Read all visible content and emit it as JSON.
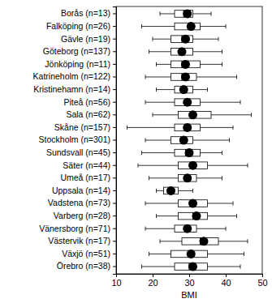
{
  "chart_data": {
    "type": "box",
    "orientation": "horizontal",
    "color": "#000000",
    "x_label": "BMI",
    "categories": [
      "Borås (n=13)",
      "Falköping (n=26)",
      "Gävle (n=19)",
      "Göteborg (n=137)",
      "Jönköping (n=11)",
      "Katrineholm (n=122)",
      "Kristinehamn (n=14)",
      "Piteå (n=56)",
      "Sala (n=62)",
      "Skåne (n=157)",
      "Stockholm (n=301)",
      "Sundsvall (n=45)",
      "Säter (n=44)",
      "Umeå (n=17)",
      "Uppsala (n=14)",
      "Vadstena (n=73)",
      "Varberg (n=28)",
      "Vänersborg (n=71)",
      "Västervik (n=17)",
      "Växjö (n=51)",
      "Örebro (n=38)"
    ],
    "whisker_low": [
      22,
      17,
      20,
      19,
      21,
      18,
      21,
      18,
      20,
      13,
      18,
      17,
      16,
      19,
      21,
      18,
      21,
      18,
      22,
      19,
      17
    ],
    "q1": [
      26,
      26,
      25,
      25,
      25,
      25,
      26,
      26,
      27,
      26,
      25,
      26,
      27,
      27,
      23,
      27,
      27,
      26,
      28,
      25,
      26
    ],
    "median": [
      28.5,
      30,
      28,
      27.5,
      28,
      28,
      28,
      29,
      31,
      29,
      28,
      29,
      31,
      29,
      25,
      31,
      31,
      29,
      33,
      30,
      30
    ],
    "q3": [
      31,
      33,
      31,
      31,
      33,
      32,
      31,
      33,
      36,
      33,
      31,
      33,
      35,
      32,
      27,
      35,
      35,
      32,
      38,
      35,
      35
    ],
    "whisker_high": [
      36,
      40,
      38,
      39,
      39,
      43,
      35,
      44,
      47,
      42,
      41,
      39,
      46,
      39,
      31,
      42,
      43,
      40,
      46,
      45,
      44
    ],
    "mean": [
      29.5,
      30.5,
      29,
      28,
      29,
      29,
      28.5,
      29.5,
      31,
      29.5,
      28.5,
      30,
      31,
      29.5,
      25,
      31,
      32,
      29.5,
      34,
      30.5,
      31
    ],
    "xlim": [
      10,
      50
    ],
    "xticks": [
      10,
      20,
      30,
      40,
      50
    ]
  }
}
